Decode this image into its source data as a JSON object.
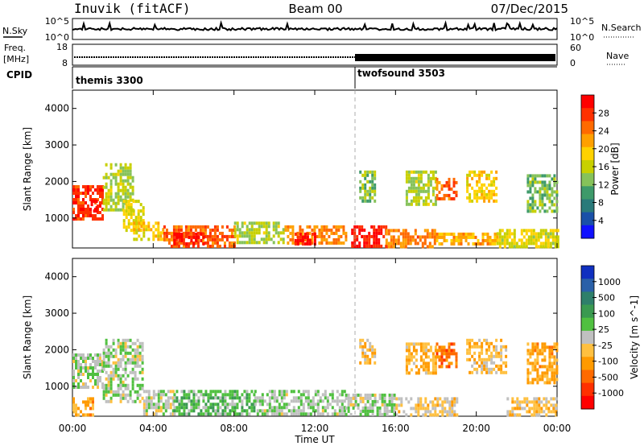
{
  "header": {
    "station": "Inuvik (fitACF)",
    "beam": "Beam 00",
    "date": "07/Dec/2015"
  },
  "nsky_panel": {
    "left_label": "N.Sky",
    "left_ticks": [
      "10^5",
      "10^0"
    ],
    "right_label": "N.Search",
    "right_ticks": [
      "10^5",
      "10^0"
    ]
  },
  "freq_panel": {
    "left_label_top": "Freq.",
    "left_label_unit": "[MHz]",
    "left_ticks": [
      "18",
      "8"
    ],
    "right_label": "Nave",
    "right_ticks": [
      "60",
      "0"
    ]
  },
  "cpid_panel": {
    "label": "CPID",
    "programs": [
      {
        "name": "themis 3300",
        "start_hour": 0
      },
      {
        "name": "twofsound 3503",
        "start_hour": 14
      }
    ]
  },
  "x_axis": {
    "title": "Time UT",
    "ticks": [
      "00:00",
      "04:00",
      "08:00",
      "12:00",
      "16:00",
      "20:00",
      "00:00"
    ]
  },
  "y_axis": {
    "title": "Slant Range [km]",
    "ticks": [
      "1000",
      "2000",
      "3000",
      "4000"
    ]
  },
  "power_scale": {
    "title": "Power [dB]",
    "labels": [
      "28",
      "24",
      "20",
      "16",
      "12",
      "8",
      "4"
    ],
    "colors": [
      "#ff0000",
      "#ff3000",
      "#ff6a00",
      "#ffa000",
      "#ffd200",
      "#c8d000",
      "#86c25a",
      "#3e9a6a",
      "#2a7a7a",
      "#1a50a8",
      "#1010ff"
    ]
  },
  "velocity_scale": {
    "title": "Velocity [m s^-1]",
    "labels": [
      "1000",
      "500",
      "100",
      "25",
      "-25",
      "-100",
      "-500",
      "-1000"
    ],
    "colors": [
      "#1030c0",
      "#2a60a8",
      "#2e7f6a",
      "#3a9a50",
      "#50c040",
      "#c0c0c0",
      "#ffc040",
      "#ff9a00",
      "#ff6a00",
      "#ff3000",
      "#ff0000"
    ]
  },
  "chart_data": {
    "type": "heatmap",
    "x_range_hours": [
      0,
      24
    ],
    "y_range_km": [
      180,
      4500
    ],
    "power_range_db": [
      0,
      30
    ],
    "velocity_range_ms": [
      -1000,
      1000
    ],
    "program_change_hour": 14,
    "power_regions": [
      {
        "t0": 0.0,
        "t1": 1.5,
        "r0": 1000,
        "r1": 1900,
        "value": 26
      },
      {
        "t0": 0.9,
        "t1": 1.2,
        "r0": 1200,
        "r1": 1500,
        "value": 30
      },
      {
        "t0": 1.5,
        "t1": 3.0,
        "r0": 1200,
        "r1": 2500,
        "value": 14
      },
      {
        "t0": 2.5,
        "t1": 3.5,
        "r0": 700,
        "r1": 1500,
        "value": 16
      },
      {
        "t0": 3.0,
        "t1": 4.5,
        "r0": 400,
        "r1": 900,
        "value": 18
      },
      {
        "t0": 4.5,
        "t1": 8.0,
        "r0": 250,
        "r1": 800,
        "value": 24
      },
      {
        "t0": 5.0,
        "t1": 6.5,
        "r0": 250,
        "r1": 600,
        "value": 29
      },
      {
        "t0": 8.0,
        "t1": 10.5,
        "r0": 300,
        "r1": 900,
        "value": 14
      },
      {
        "t0": 10.5,
        "t1": 13.5,
        "r0": 300,
        "r1": 800,
        "value": 22
      },
      {
        "t0": 11.0,
        "t1": 12.0,
        "r0": 300,
        "r1": 600,
        "value": 28
      },
      {
        "t0": 13.8,
        "t1": 15.5,
        "r0": 250,
        "r1": 800,
        "value": 28
      },
      {
        "t0": 15.5,
        "t1": 18.0,
        "r0": 250,
        "r1": 700,
        "value": 22
      },
      {
        "t0": 18.0,
        "t1": 21.0,
        "r0": 250,
        "r1": 600,
        "value": 20
      },
      {
        "t0": 21.0,
        "t1": 24.0,
        "r0": 250,
        "r1": 700,
        "value": 16
      },
      {
        "t0": 14.2,
        "t1": 15.0,
        "r0": 1500,
        "r1": 2300,
        "value": 12
      },
      {
        "t0": 16.5,
        "t1": 18.0,
        "r0": 1400,
        "r1": 2300,
        "value": 14
      },
      {
        "t0": 18.0,
        "t1": 19.0,
        "r0": 1500,
        "r1": 2100,
        "value": 24
      },
      {
        "t0": 19.5,
        "t1": 21.0,
        "r0": 1500,
        "r1": 2300,
        "value": 18
      },
      {
        "t0": 22.5,
        "t1": 24.0,
        "r0": 1200,
        "r1": 2200,
        "value": 12
      }
    ],
    "velocity_regions": [
      {
        "t0": 0.0,
        "t1": 1.5,
        "r0": 1000,
        "r1": 1900,
        "value": 60
      },
      {
        "t0": 0.0,
        "t1": 1.0,
        "r0": 250,
        "r1": 700,
        "value": -300
      },
      {
        "t0": 1.5,
        "t1": 3.5,
        "r0": 600,
        "r1": 2300,
        "value": 50
      },
      {
        "t0": 3.5,
        "t1": 5.0,
        "r0": 250,
        "r1": 900,
        "value": 10
      },
      {
        "t0": 5.0,
        "t1": 9.0,
        "r0": 250,
        "r1": 900,
        "value": 200
      },
      {
        "t0": 9.0,
        "t1": 13.5,
        "r0": 250,
        "r1": 900,
        "value": 80
      },
      {
        "t0": 13.5,
        "t1": 16.0,
        "r0": 250,
        "r1": 800,
        "value": 40
      },
      {
        "t0": 14.2,
        "t1": 15.0,
        "r0": 1600,
        "r1": 2300,
        "value": -200
      },
      {
        "t0": 16.0,
        "t1": 19.0,
        "r0": 250,
        "r1": 700,
        "value": -120
      },
      {
        "t0": 16.5,
        "t1": 18.0,
        "r0": 1400,
        "r1": 2200,
        "value": -250
      },
      {
        "t0": 18.0,
        "t1": 19.0,
        "r0": 1500,
        "r1": 2200,
        "value": -500
      },
      {
        "t0": 19.5,
        "t1": 21.5,
        "r0": 1400,
        "r1": 2300,
        "value": -180
      },
      {
        "t0": 21.5,
        "t1": 24.0,
        "r0": 250,
        "r1": 700,
        "value": -150
      },
      {
        "t0": 22.5,
        "t1": 24.0,
        "r0": 1100,
        "r1": 2200,
        "value": -300
      }
    ]
  }
}
